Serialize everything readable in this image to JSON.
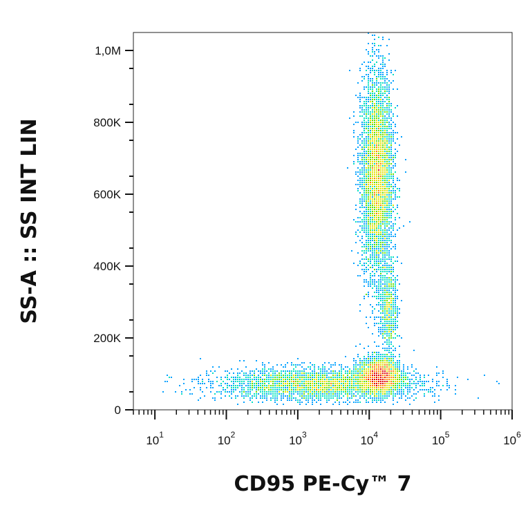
{
  "chart_data": {
    "type": "scatter",
    "subtype": "density-dot-plot",
    "title": "",
    "xlabel": "CD95 PE-Cy™ 7",
    "ylabel": "SS-A :: SS INT LIN",
    "x_scale": "log",
    "x_range": [
      5,
      1000000
    ],
    "y_scale": "linear",
    "y_range": [
      0,
      1050000
    ],
    "x_ticks": [
      {
        "value": 10,
        "base": "10",
        "exp": "1"
      },
      {
        "value": 100,
        "base": "10",
        "exp": "2"
      },
      {
        "value": 1000,
        "base": "10",
        "exp": "3"
      },
      {
        "value": 10000,
        "base": "10",
        "exp": "4"
      },
      {
        "value": 100000,
        "base": "10",
        "exp": "5"
      },
      {
        "value": 1000000,
        "base": "10",
        "exp": "6"
      }
    ],
    "y_ticks": [
      {
        "value": 0,
        "label": "0"
      },
      {
        "value": 200000,
        "label": "200K"
      },
      {
        "value": 400000,
        "label": "400K"
      },
      {
        "value": 600000,
        "label": "600K"
      },
      {
        "value": 800000,
        "label": "800K"
      },
      {
        "value": 1000000,
        "label": "1,0M"
      }
    ],
    "populations": [
      {
        "x_center": 13000,
        "y_center": 650000,
        "x_spread_decades": 0.11,
        "y_spread": 140000,
        "count": 5200
      },
      {
        "x_center": 14000,
        "y_center": 95000,
        "x_spread_decades": 0.14,
        "y_spread": 25000,
        "count": 2600
      },
      {
        "x_center": 2000,
        "y_center": 70000,
        "x_spread_decades": 0.7,
        "y_spread": 22000,
        "count": 3400
      },
      {
        "x_center": 19000,
        "y_center": 280000,
        "x_spread_decades": 0.06,
        "y_spread": 60000,
        "count": 700
      }
    ],
    "grid": false,
    "legend": "none",
    "colormap": [
      "#0000ff",
      "#00a0ff",
      "#00e0c0",
      "#60e000",
      "#e0e000",
      "#ff8000",
      "#e00000"
    ]
  }
}
